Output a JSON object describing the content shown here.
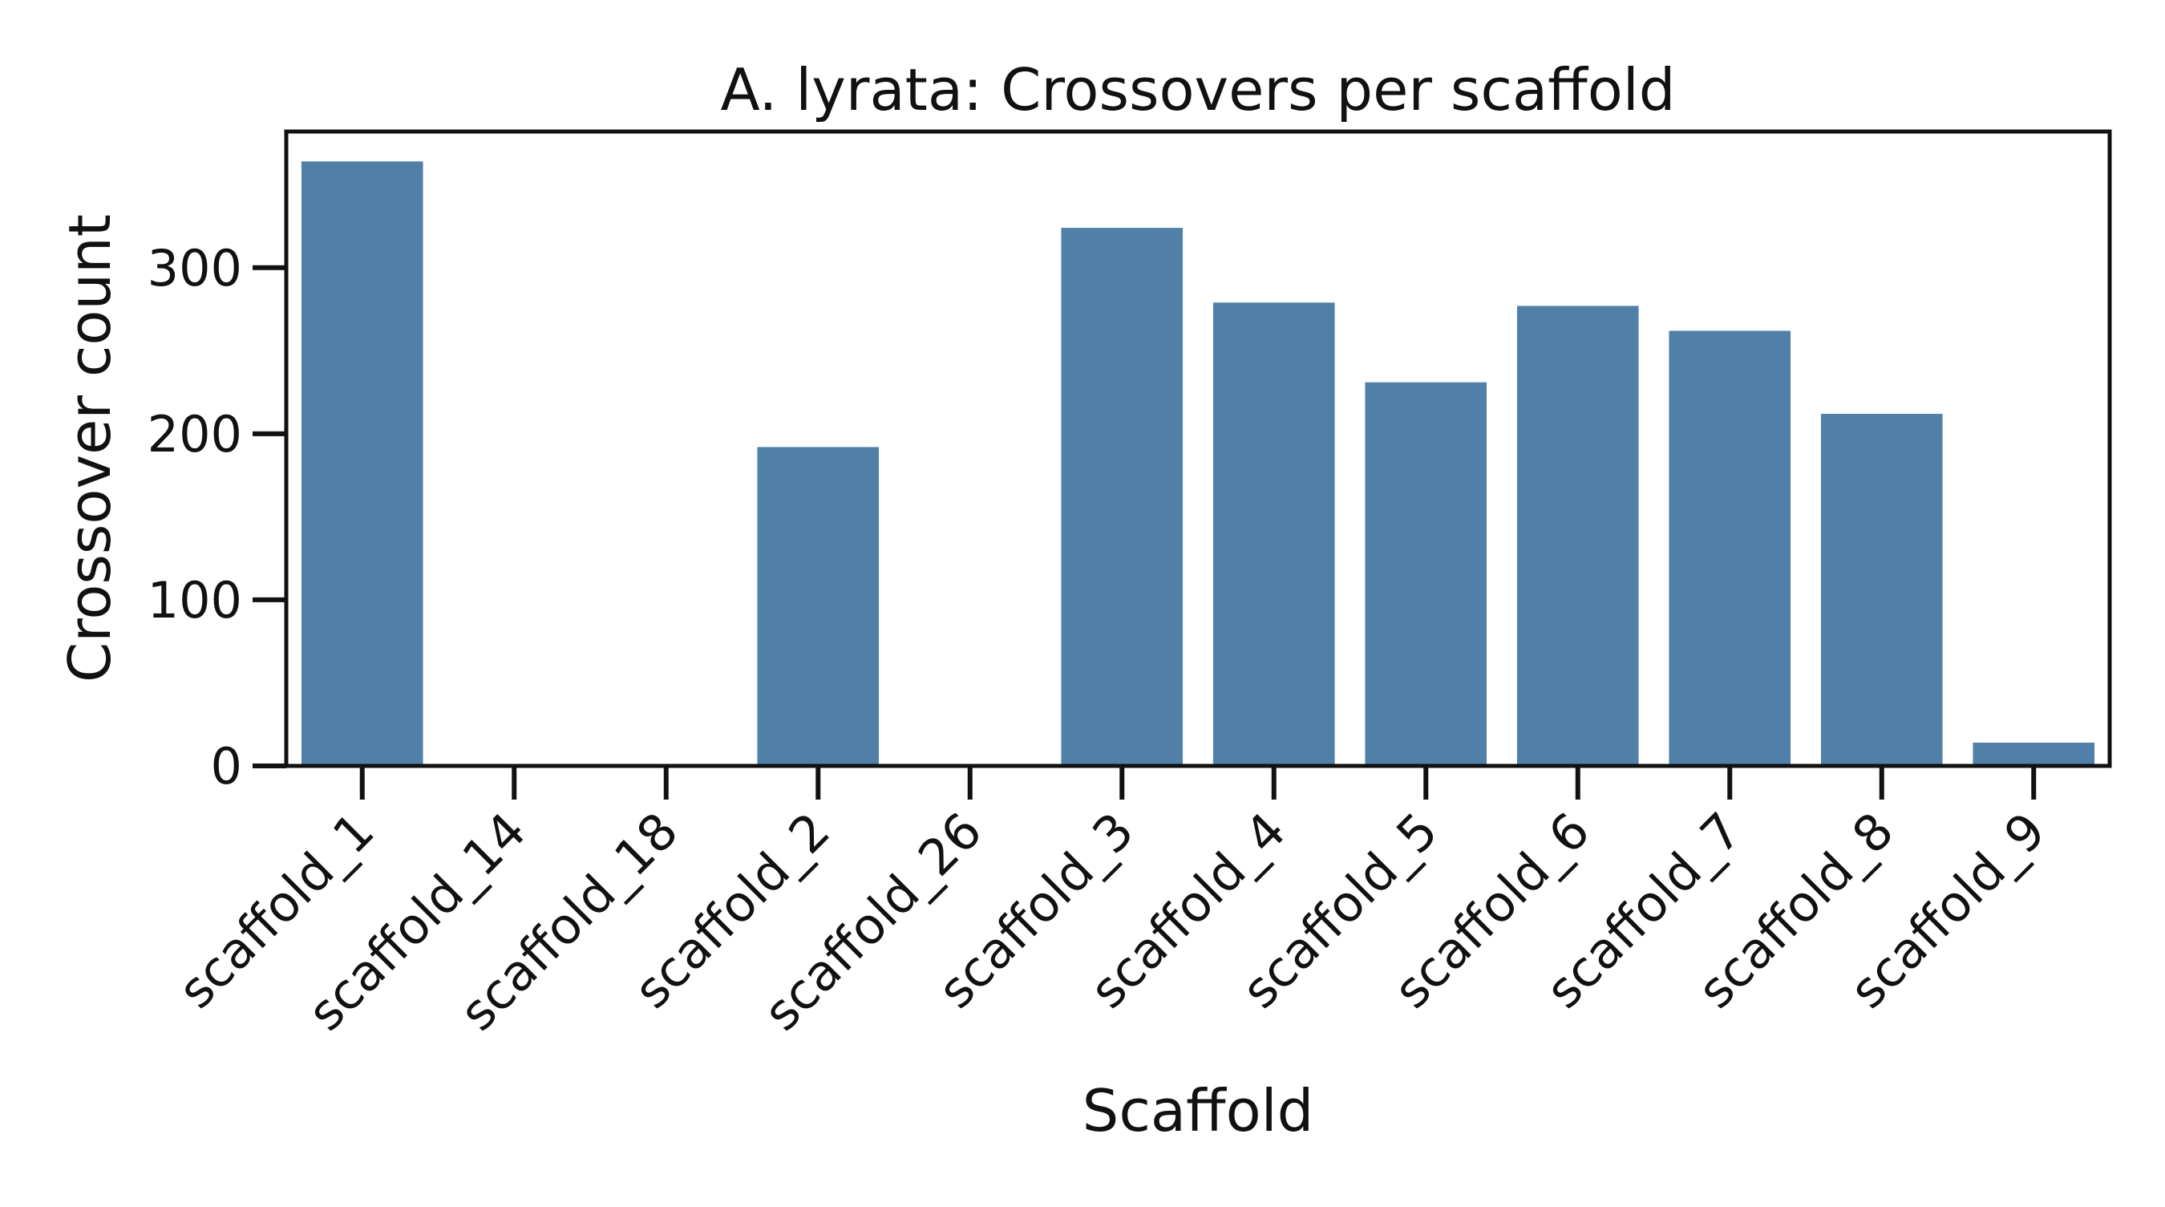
{
  "chart_data": {
    "type": "bar",
    "title": "A. lyrata: Crossovers per scaffold",
    "xlabel": "Scaffold",
    "ylabel": "Crossover count",
    "categories": [
      "scaffold_1",
      "scaffold_14",
      "scaffold_18",
      "scaffold_2",
      "scaffold_26",
      "scaffold_3",
      "scaffold_4",
      "scaffold_5",
      "scaffold_6",
      "scaffold_7",
      "scaffold_8",
      "scaffold_9"
    ],
    "values": [
      364,
      0,
      0,
      192,
      0,
      324,
      279,
      231,
      277,
      262,
      212,
      14
    ],
    "ylim": [
      0,
      382
    ],
    "yticks": [
      0,
      100,
      200,
      300
    ],
    "ytick_labels": [
      "0",
      "100",
      "200",
      "300"
    ],
    "grid": false,
    "bar_color": "#5080a8"
  }
}
